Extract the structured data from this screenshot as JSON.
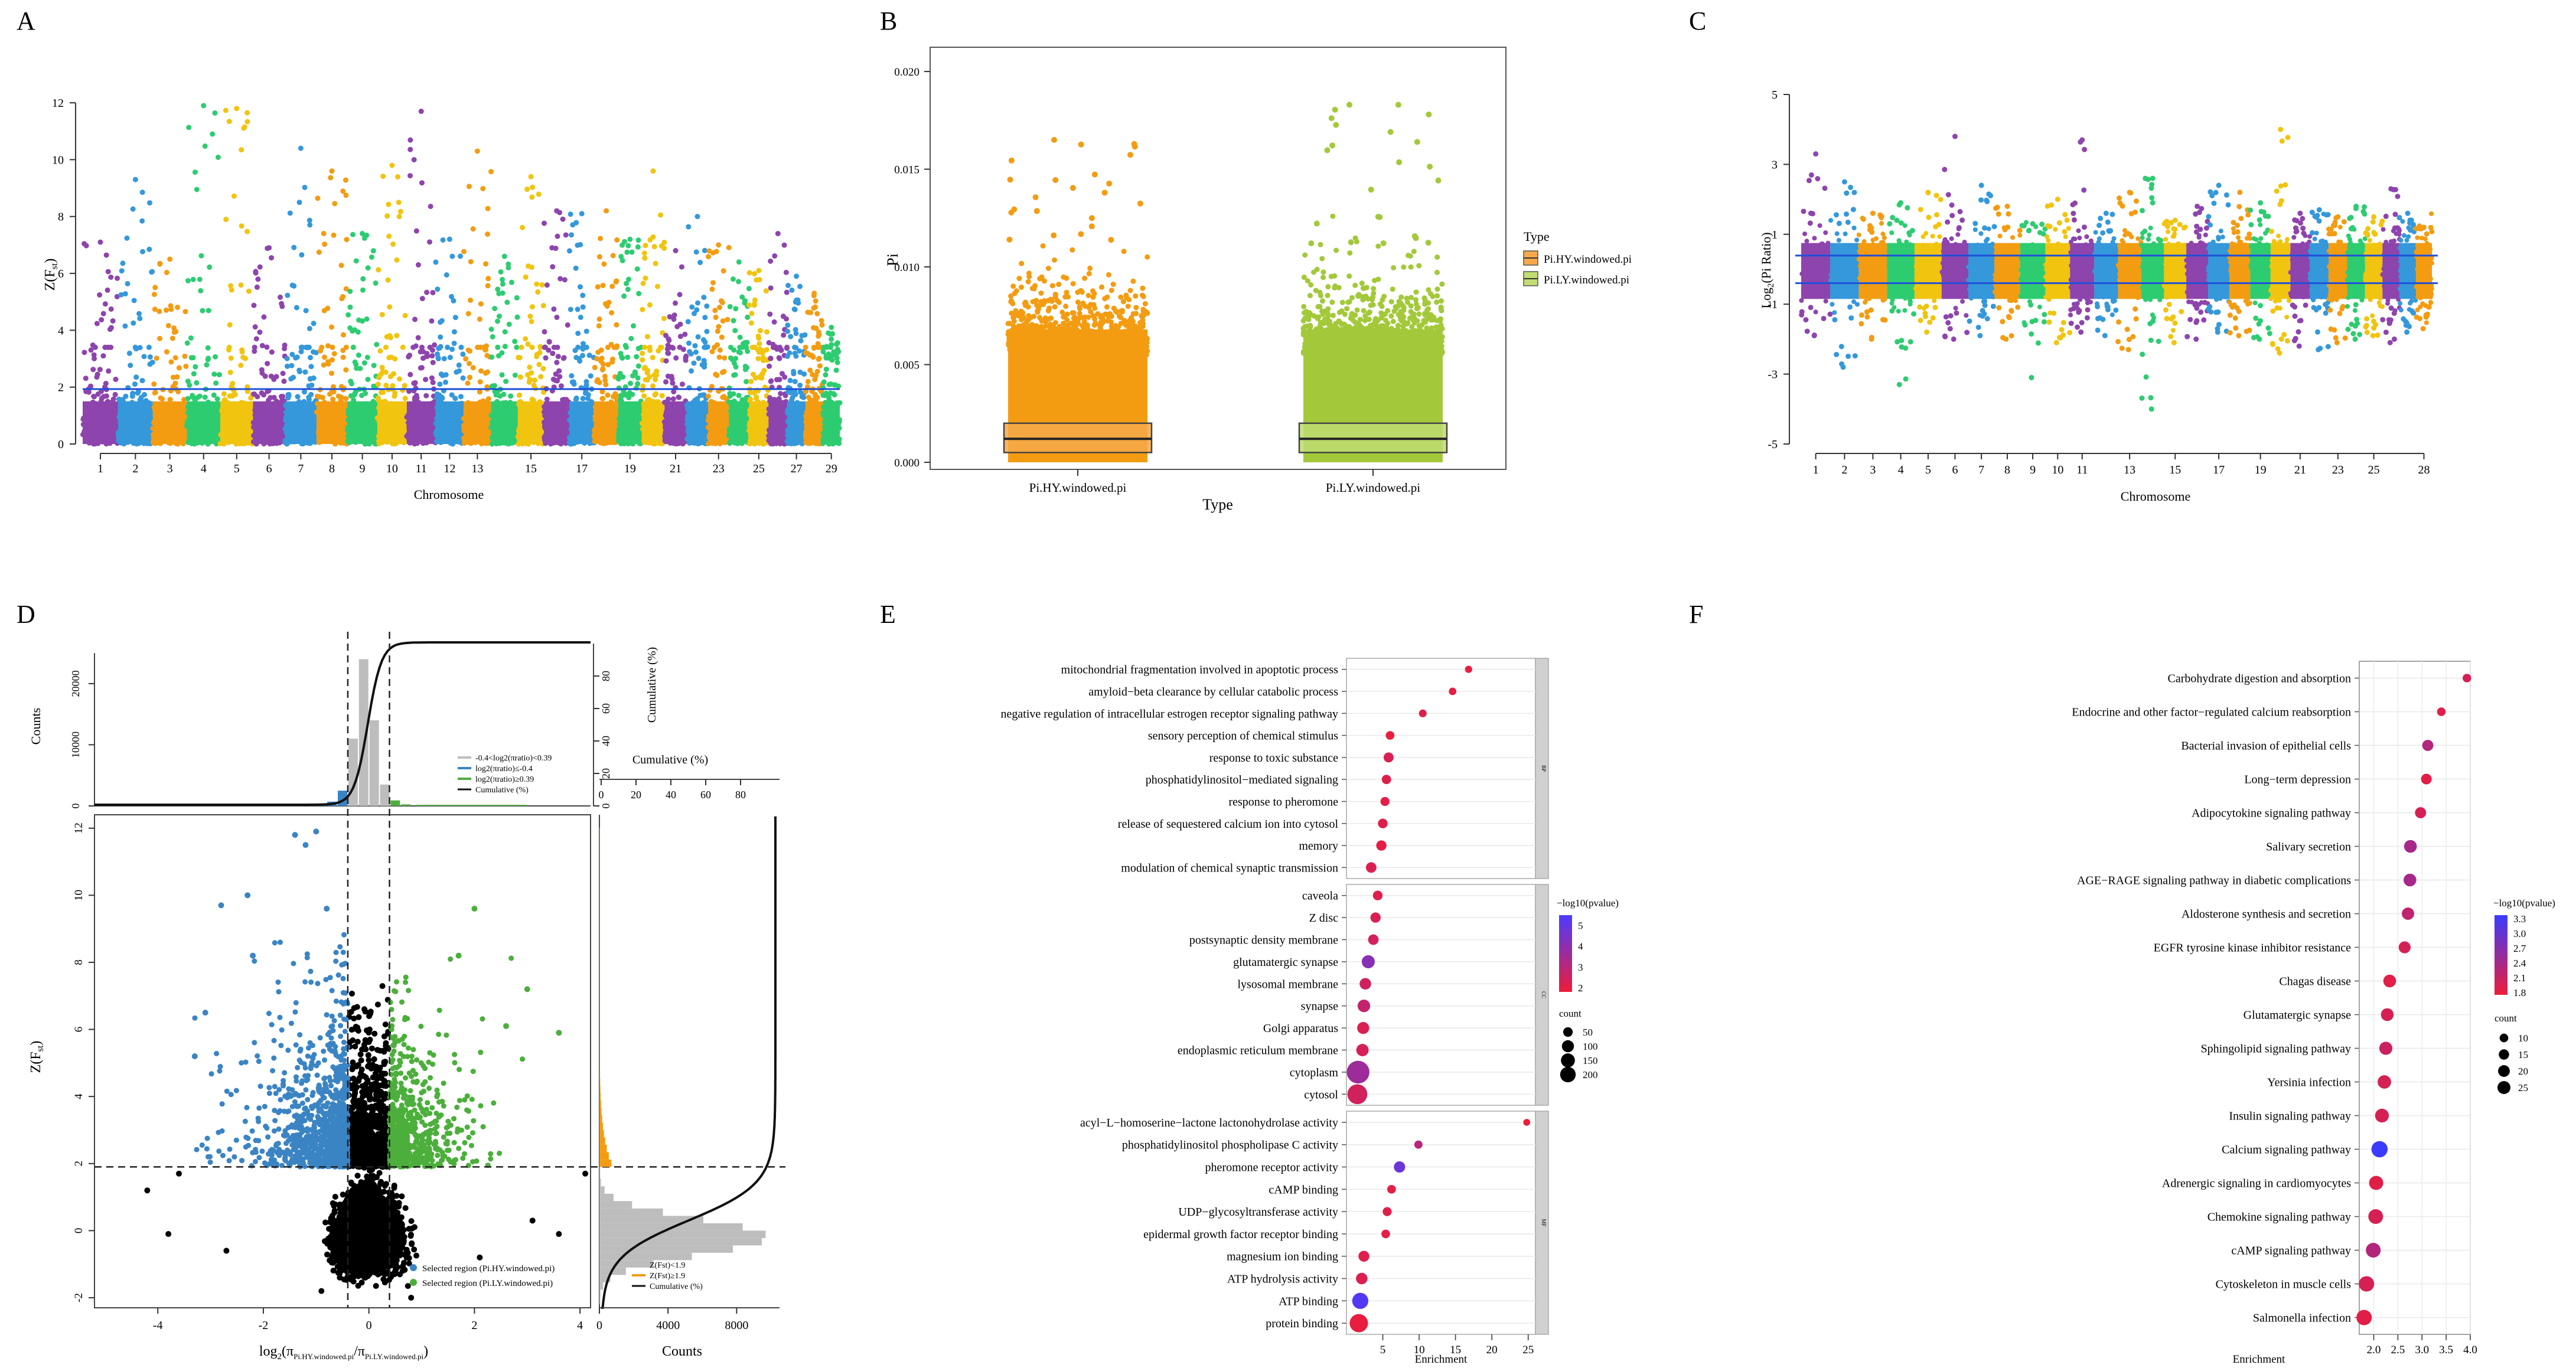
{
  "chart_data": [
    {
      "panel": "A",
      "type": "scatter",
      "subtype": "manhattan",
      "xlabel": "Chromosome",
      "ylabel": "Z(Fst)",
      "ylim": [
        0,
        12.5
      ],
      "yticks": [
        0,
        2,
        4,
        6,
        8,
        10,
        12
      ],
      "threshold": 1.9,
      "n_chromosomes": 29,
      "x_tick_labels": [
        "1",
        "2",
        "3",
        "4",
        "5",
        "6",
        "7",
        "8",
        "9",
        "10",
        "11",
        "12",
        "13",
        "15",
        "17",
        "19",
        "21",
        "23",
        "25",
        "27",
        "29"
      ],
      "chromosome_peaks": [
        7.1,
        9.3,
        6.5,
        11.9,
        11.8,
        6.9,
        10.4,
        9.6,
        7.4,
        9.8,
        11.7,
        7.2,
        10.3,
        6.6,
        9.4,
        8.2,
        8.1,
        8.2,
        7.2,
        9.6,
        6.8,
        8.0,
        7.0,
        6.4,
        6.1,
        7.4,
        5.9,
        5.3,
        4.1
      ],
      "chromosome_colors": [
        "#8e44ad",
        "#3498db",
        "#f39c12",
        "#2ecc71",
        "#f1c40f"
      ]
    },
    {
      "panel": "B",
      "type": "box+jitter",
      "xlabel": "Type",
      "ylabel": "Pi",
      "ylim": [
        0,
        0.021
      ],
      "yticks": [
        0.0,
        0.005,
        0.01,
        0.015,
        0.02
      ],
      "yticklabels": [
        "0.000",
        "0.005",
        "0.010",
        "0.015",
        "0.020"
      ],
      "categories": [
        "Pi.HY.windowed.pi",
        "Pi.LY.windowed.pi"
      ],
      "colors": [
        "#f39c12",
        "#a3c93a"
      ],
      "box_q1": [
        0.0005,
        0.0005
      ],
      "box_median": [
        0.0012,
        0.0012
      ],
      "box_q3": [
        0.002,
        0.002
      ],
      "max_values": [
        0.0165,
        0.0183
      ],
      "legend_title": "Type",
      "legend_entries": [
        "Pi.HY.windowed.pi",
        "Pi.LY.windowed.pi"
      ]
    },
    {
      "panel": "C",
      "type": "scatter",
      "subtype": "manhattan",
      "xlabel": "Chromosome",
      "ylabel": "Log2(Pi Ratio)",
      "ylim": [
        -5,
        5
      ],
      "yticks": [
        -5,
        -3,
        -1,
        1,
        3,
        5
      ],
      "thresholds": [
        0.39,
        -0.4
      ],
      "x_tick_labels": [
        "1",
        "2",
        "3",
        "4",
        "5",
        "6",
        "7",
        "8",
        "9",
        "10",
        "11",
        "13",
        "15",
        "17",
        "19",
        "21",
        "23",
        "25",
        "28"
      ],
      "chromosome_peaks": [
        3.3,
        2.5,
        1.6,
        1.9,
        2.2,
        3.8,
        2.4,
        1.8,
        1.3,
        2.0,
        3.7,
        1.6,
        2.2,
        2.6,
        1.4,
        1.8,
        2.4,
        2.2,
        1.9,
        4.0,
        1.6,
        1.7,
        1.5,
        1.8,
        1.5,
        2.3,
        1.6,
        1.2
      ],
      "chromosome_troughs": [
        -1.9,
        -2.8,
        -2.0,
        -3.3,
        -1.8,
        -2.0,
        -1.9,
        -2.0,
        -3.1,
        -2.1,
        -1.8,
        -1.9,
        -2.3,
        -4.0,
        -2.1,
        -2.0,
        -1.8,
        -1.9,
        -2.0,
        -2.4,
        -2.2,
        -2.3,
        -2.1,
        -2.0,
        -1.9,
        -2.1,
        -1.8,
        -1.7
      ]
    },
    {
      "panel": "D",
      "type": "scatter",
      "subtype": "joint",
      "xlabel_main": "log",
      "xlabel_sub": "2",
      "xlabel_expr": "(π",
      "xlabel_pi1": "Pi.HY.windowed.pi",
      "xlabel_div": "/π",
      "xlabel_pi2": "Pi.LY.windowed.pi",
      "xlabel_close": ")",
      "ylabel": "Z(Fst)",
      "xlim": [
        -5.2,
        4.2
      ],
      "xticks": [
        -4,
        -2,
        0,
        2,
        4
      ],
      "ylim": [
        -2.3,
        12.4
      ],
      "yticks": [
        -2,
        0,
        2,
        4,
        6,
        8,
        10,
        12
      ],
      "vlines": [
        -0.4,
        0.39
      ],
      "hline": 1.9,
      "top_hist": {
        "ylabel": "Counts",
        "yticks": [
          0,
          10000,
          20000
        ],
        "y2label": "Cumulative (%)",
        "y2ticks": [
          0,
          20,
          40,
          60,
          80
        ],
        "legend": [
          "-0.4<log2(πratio)<0.39",
          "log2(πratio)≤-0.4",
          "log2(πratio)≥0.39",
          "Cumulative (%)"
        ]
      },
      "right_hist": {
        "xlabel": "Counts",
        "xticks": [
          0,
          4000,
          8000
        ],
        "x2label": "Cumulative (%)",
        "x2ticks": [
          0,
          20,
          40,
          60,
          80
        ],
        "legend": [
          "Z(Fst)<1.9",
          "Z(Fst)≥1.9",
          "Cumulative (%)"
        ]
      },
      "scatter_legend": [
        "Selected region (Pi.HY.windowed.pi)",
        "Selected region (Pi.LY.windowed.pi)"
      ],
      "colors": {
        "neutral": "#000000",
        "hy": "#3b84c4",
        "ly": "#4caf3c",
        "hist_gray": "#bdbdbd",
        "hist_orange": "#f39c12"
      },
      "outliers": [
        [
          -1.4,
          11.8
        ],
        [
          -1.2,
          11.5
        ],
        [
          -1.0,
          11.9
        ],
        [
          -0.8,
          9.6
        ],
        [
          -2.3,
          10.0
        ],
        [
          -2.8,
          9.7
        ],
        [
          -2.2,
          8.2
        ],
        [
          -3.1,
          6.5
        ],
        [
          -3.3,
          5.2
        ],
        [
          -4.2,
          1.2
        ],
        [
          -3.6,
          1.7
        ],
        [
          2.0,
          9.6
        ],
        [
          1.7,
          8.2
        ],
        [
          3.0,
          7.2
        ],
        [
          3.6,
          5.9
        ],
        [
          2.6,
          6.1
        ],
        [
          2.1,
          -0.8
        ],
        [
          3.6,
          -0.1
        ],
        [
          3.1,
          0.3
        ],
        [
          4.1,
          1.7
        ],
        [
          -3.8,
          -0.1
        ],
        [
          -2.7,
          -0.6
        ],
        [
          -0.9,
          -1.8
        ],
        [
          0.3,
          -1.3
        ],
        [
          0.8,
          -2.0
        ]
      ]
    },
    {
      "panel": "E",
      "type": "scatter",
      "subtype": "GO enrichment dotplot",
      "xlabel": "Enrichment",
      "xlim": [
        0,
        26
      ],
      "xticks": [
        5,
        10,
        15,
        20,
        25
      ],
      "facets": [
        {
          "label": "BP",
          "terms": [
            "mitochondrial fragmentation involved in apoptotic process",
            "amyloid−beta clearance by cellular catabolic process",
            "negative regulation of intracellular estrogen receptor signaling pathway",
            "sensory perception of chemical stimulus",
            "response to toxic substance",
            "phosphatidylinositol−mediated signaling",
            "response to pheromone",
            "release of sequestered calcium ion into cytosol",
            "memory",
            "modulation of chemical synaptic transmission"
          ],
          "enrichment": [
            16.8,
            14.6,
            10.5,
            6.0,
            5.8,
            5.5,
            5.3,
            5.0,
            4.8,
            3.4
          ],
          "neglog10p": [
            2.1,
            2.2,
            2.3,
            2.1,
            2.4,
            2.3,
            2.2,
            2.3,
            2.2,
            2.4
          ],
          "count": [
            4,
            5,
            6,
            10,
            18,
            14,
            12,
            16,
            20,
            22
          ]
        },
        {
          "label": "CC",
          "terms": [
            "caveola",
            "Z disc",
            "postsynaptic density membrane",
            "glutamatergic synapse",
            "lysosomal membrane",
            "synapse",
            "Golgi apparatus",
            "endoplasmic reticulum membrane",
            "cytoplasm",
            "cytosol"
          ],
          "enrichment": [
            4.3,
            4.0,
            3.7,
            3.0,
            2.6,
            2.4,
            2.3,
            2.2,
            1.6,
            1.5
          ],
          "neglog10p": [
            2.3,
            2.4,
            2.6,
            4.2,
            2.6,
            2.9,
            2.4,
            2.5,
            3.7,
            2.6
          ],
          "count": [
            16,
            20,
            22,
            45,
            30,
            40,
            35,
            38,
            210,
            150
          ]
        },
        {
          "label": "MF",
          "terms": [
            "acyl−L−homoserine−lactone lactonohydrolase activity",
            "phosphatidylinositol phospholipase C activity",
            "pheromone receptor activity",
            "cAMP binding",
            "UDP−glycosyltransferase activity",
            "epidermal growth factor receptor binding",
            "magnesium ion binding",
            "ATP hydrolysis activity",
            "ATP binding",
            "protein binding"
          ],
          "enrichment": [
            24.8,
            9.9,
            7.3,
            6.2,
            5.6,
            5.4,
            2.4,
            2.1,
            1.9,
            1.7
          ],
          "neglog10p": [
            2.0,
            3.1,
            4.8,
            2.2,
            2.3,
            2.2,
            2.3,
            2.4,
            5.3,
            2.1
          ],
          "count": [
            3,
            8,
            28,
            10,
            12,
            10,
            25,
            30,
            85,
            120
          ]
        }
      ],
      "color_legend": {
        "title": "−log10(pvalue)",
        "ticks": [
          2,
          3,
          4,
          5
        ],
        "low": "#ed1c3a",
        "high": "#4b3bff"
      },
      "size_legend": {
        "title": "count",
        "values": [
          50,
          100,
          150,
          200
        ]
      }
    },
    {
      "panel": "F",
      "type": "scatter",
      "subtype": "KEGG enrichment dotplot",
      "xlabel": "Enrichment",
      "xlim": [
        1.7,
        4.0
      ],
      "xticks": [
        2.0,
        2.5,
        3.0,
        3.5,
        4.0
      ],
      "xticklabels": [
        "2.0",
        "2.5",
        "3.0",
        "3.5",
        "4.0"
      ],
      "terms": [
        "Carbohydrate digestion and absorption",
        "Endocrine and other factor−regulated calcium reabsorption",
        "Bacterial invasion of epithelial cells",
        "Long−term depression",
        "Adipocytokine signaling pathway",
        "Salivary secretion",
        "AGE−RAGE signaling pathway in diabetic complications",
        "Aldosterone synthesis and secretion",
        "EGFR tyrosine kinase inhibitor resistance",
        "Chagas disease",
        "Glutamatergic synapse",
        "Sphingolipid signaling pathway",
        "Yersinia infection",
        "Insulin signaling pathway",
        "Calcium signaling pathway",
        "Adrenergic signaling in cardiomyocytes",
        "Chemokine signaling pathway",
        "cAMP signaling pathway",
        "Cytoskeleton in muscle cells",
        "Salmonella infection"
      ],
      "enrichment": [
        3.93,
        3.4,
        3.12,
        3.09,
        2.97,
        2.76,
        2.75,
        2.71,
        2.64,
        2.33,
        2.28,
        2.25,
        2.22,
        2.17,
        2.12,
        2.05,
        2.04,
        1.99,
        1.85,
        1.8
      ],
      "neglog10p": [
        2.0,
        1.9,
        2.3,
        1.9,
        2.0,
        2.4,
        2.4,
        2.2,
        2.0,
        1.9,
        2.0,
        2.1,
        2.0,
        2.0,
        3.3,
        1.9,
        2.0,
        2.3,
        2.0,
        1.9
      ],
      "count": [
        5,
        5,
        10,
        9,
        10,
        14,
        14,
        13,
        12,
        14,
        14,
        15,
        16,
        17,
        25,
        18,
        20,
        20,
        22,
        22
      ],
      "color_legend": {
        "title": "−log10(pvalue)",
        "ticks": [
          "3.3",
          "3.0",
          "2.7",
          "2.4",
          "2.1",
          "1.8"
        ],
        "low": "#ed1c3a",
        "high": "#3b3bff"
      },
      "size_legend": {
        "title": "count",
        "values": [
          10,
          15,
          20,
          25
        ]
      }
    }
  ]
}
